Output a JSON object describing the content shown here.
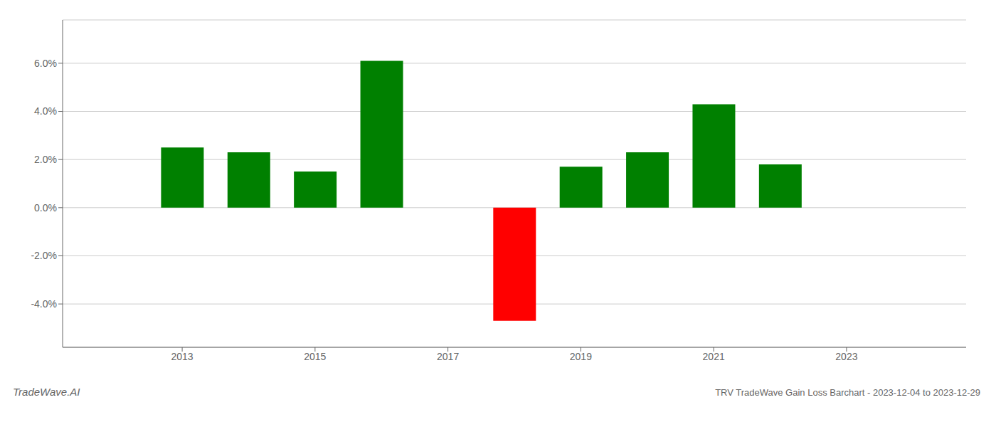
{
  "chart_data": {
    "type": "bar",
    "title": "TRV TradeWave Gain Loss Barchart - 2023-12-04 to 2023-12-29",
    "annotations": [
      "TradeWave.AI"
    ],
    "x": [
      2013,
      2014,
      2015,
      2016,
      2018,
      2019,
      2020,
      2021,
      2022
    ],
    "values": [
      0.025,
      0.023,
      0.015,
      0.061,
      -0.047,
      0.017,
      0.023,
      0.043,
      0.018
    ],
    "colors": [
      "#008000",
      "#008000",
      "#008000",
      "#008000",
      "#ff0000",
      "#008000",
      "#008000",
      "#008000",
      "#008000"
    ],
    "xlim": [
      2011.2,
      2024.8
    ],
    "ylim": [
      -0.058,
      0.078
    ],
    "xticks": [
      2013,
      2015,
      2017,
      2019,
      2021,
      2023
    ],
    "yticks": [
      {
        "value": -0.04,
        "label": "-4.0%"
      },
      {
        "value": -0.02,
        "label": "-2.0%"
      },
      {
        "value": 0.0,
        "label": "0.0%"
      },
      {
        "value": 0.02,
        "label": "2.0%"
      },
      {
        "value": 0.04,
        "label": "4.0%"
      },
      {
        "value": 0.06,
        "label": "6.0%"
      }
    ],
    "grid": true
  }
}
